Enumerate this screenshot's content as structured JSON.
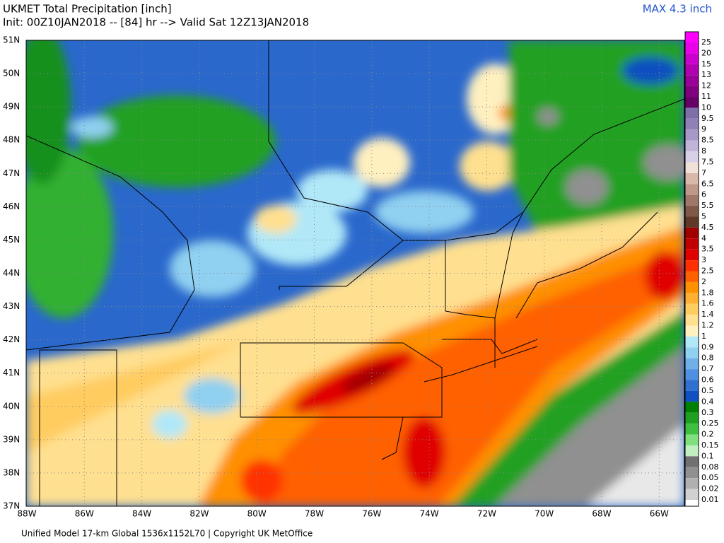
{
  "header": {
    "title": "UKMET Total Precipitation [inch]",
    "subtitle": "Init: 00Z10JAN2018 -- [84] hr --> Valid Sat 12Z13JAN2018",
    "max_label": "MAX 4.3 inch"
  },
  "lat_labels": [
    "51N",
    "50N",
    "49N",
    "48N",
    "47N",
    "46N",
    "45N",
    "44N",
    "43N",
    "42N",
    "41N",
    "40N",
    "39N",
    "38N",
    "37N"
  ],
  "lon_labels": [
    "88W",
    "86W",
    "84W",
    "82W",
    "80W",
    "78W",
    "76W",
    "74W",
    "72W",
    "70W",
    "68W",
    "66W"
  ],
  "colorbar": {
    "levels": [
      {
        "label": "25",
        "color": "#ff00ff"
      },
      {
        "label": "20",
        "color": "#e800e8"
      },
      {
        "label": "15",
        "color": "#cc00cc"
      },
      {
        "label": "13",
        "color": "#b000b0"
      },
      {
        "label": "12",
        "color": "#990099"
      },
      {
        "label": "11",
        "color": "#800080"
      },
      {
        "label": "10",
        "color": "#660066"
      },
      {
        "label": "9.5",
        "color": "#7e6fa8"
      },
      {
        "label": "9",
        "color": "#9080b8"
      },
      {
        "label": "8.5",
        "color": "#a898c8"
      },
      {
        "label": "8",
        "color": "#c0b4d8"
      },
      {
        "label": "7.5",
        "color": "#d8d0e8"
      },
      {
        "label": "7",
        "color": "#f0e0d8"
      },
      {
        "label": "6.5",
        "color": "#d8b8a8"
      },
      {
        "label": "6",
        "color": "#c09888"
      },
      {
        "label": "5.5",
        "color": "#a07868"
      },
      {
        "label": "5",
        "color": "#805848"
      },
      {
        "label": "4.5",
        "color": "#603828"
      },
      {
        "label": "4",
        "color": "#a00000"
      },
      {
        "label": "3.5",
        "color": "#c00000"
      },
      {
        "label": "3",
        "color": "#e00000"
      },
      {
        "label": "2.5",
        "color": "#ff3000"
      },
      {
        "label": "2",
        "color": "#ff6000"
      },
      {
        "label": "1.8",
        "color": "#ff9000"
      },
      {
        "label": "1.6",
        "color": "#ffb030"
      },
      {
        "label": "1.4",
        "color": "#ffcc60"
      },
      {
        "label": "1.2",
        "color": "#ffe090"
      },
      {
        "label": "1",
        "color": "#fff0c0"
      },
      {
        "label": "0.9",
        "color": "#b0e8f8"
      },
      {
        "label": "0.8",
        "color": "#90d0f0"
      },
      {
        "label": "0.7",
        "color": "#70b0e8"
      },
      {
        "label": "0.6",
        "color": "#5090e0"
      },
      {
        "label": "0.5",
        "color": "#3070d0"
      },
      {
        "label": "0.4",
        "color": "#1050c0"
      },
      {
        "label": "0.3",
        "color": "#008000"
      },
      {
        "label": "0.25",
        "color": "#20a020"
      },
      {
        "label": "0.2",
        "color": "#40c040"
      },
      {
        "label": "0.15",
        "color": "#80e080"
      },
      {
        "label": "0.1",
        "color": "#c0f0c0"
      },
      {
        "label": "0.08",
        "color": "#707070"
      },
      {
        "label": "0.05",
        "color": "#909090"
      },
      {
        "label": "0.02",
        "color": "#b0b0b0"
      },
      {
        "label": "0.01",
        "color": "#d0d0d0"
      }
    ]
  },
  "footer": "Unified Model 17-km Global 1536x1152L70 | Copyright UK MetOffice"
}
